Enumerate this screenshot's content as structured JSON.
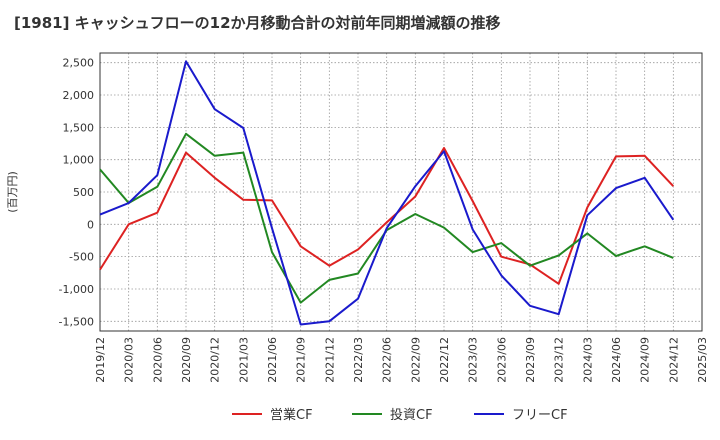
{
  "chart_data": {
    "type": "line",
    "title": "[1981]  キャッシュフローの12か月移動合計の対前年同期増減額の推移",
    "ylabel": "(百万円)",
    "xlabel": "",
    "x_ticks": [
      "2019/12",
      "2020/03",
      "2020/06",
      "2020/09",
      "2020/12",
      "2021/03",
      "2021/06",
      "2021/09",
      "2021/12",
      "2022/03",
      "2022/06",
      "2022/09",
      "2022/12",
      "2023/03",
      "2023/06",
      "2023/09",
      "2023/12",
      "2024/03",
      "2024/06",
      "2024/09",
      "2024/12",
      "2025/03"
    ],
    "y_ticks": [
      2500,
      2000,
      1500,
      1000,
      500,
      0,
      -500,
      -1000,
      -1500
    ],
    "y_tick_labels": [
      "2,500",
      "2,000",
      "1,500",
      "1,000",
      "500",
      "0",
      "-500",
      "-1,000",
      "-1,500"
    ],
    "ylim": [
      -1650,
      2650
    ],
    "grid": true,
    "legend_position": "bottom",
    "series": [
      {
        "name": "営業CF",
        "color": "#dd2222",
        "values": [
          -700,
          0,
          180,
          1110,
          720,
          380,
          370,
          -340,
          -640,
          -390,
          30,
          430,
          1180,
          360,
          -500,
          -620,
          -920,
          260,
          1050,
          1060,
          590
        ]
      },
      {
        "name": "投資CF",
        "color": "#228822",
        "values": [
          850,
          330,
          580,
          1400,
          1060,
          1110,
          -430,
          -1210,
          -860,
          -760,
          -90,
          160,
          -50,
          -430,
          -290,
          -640,
          -480,
          -140,
          -490,
          -340,
          -520
        ]
      },
      {
        "name": "フリーCF",
        "color": "#1a1acc",
        "values": [
          150,
          330,
          760,
          2520,
          1780,
          1490,
          -60,
          -1550,
          -1500,
          -1150,
          -60,
          590,
          1130,
          -80,
          -790,
          -1260,
          -1390,
          140,
          560,
          720,
          70
        ]
      }
    ]
  }
}
